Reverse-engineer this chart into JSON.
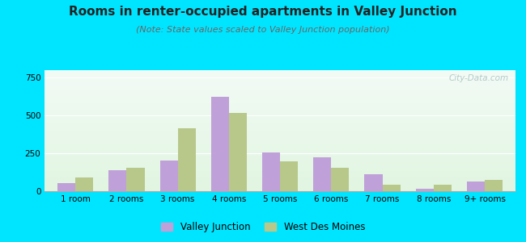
{
  "title": "Rooms in renter-occupied apartments in Valley Junction",
  "subtitle": "(Note: State values scaled to Valley Junction population)",
  "categories": [
    "1 room",
    "2 rooms",
    "3 rooms",
    "4 rooms",
    "5 rooms",
    "6 rooms",
    "7 rooms",
    "8 rooms",
    "9+ rooms"
  ],
  "valley_junction": [
    55,
    140,
    205,
    625,
    255,
    225,
    110,
    15,
    65
  ],
  "west_des_moines": [
    90,
    155,
    415,
    520,
    195,
    155,
    45,
    45,
    75
  ],
  "vj_color": "#c0a0d8",
  "wdm_color": "#b8c88a",
  "ylim": [
    0,
    800
  ],
  "yticks": [
    0,
    250,
    500,
    750
  ],
  "outer_bg": "#00e5ff",
  "title_fontsize": 11,
  "subtitle_fontsize": 8,
  "tick_fontsize": 7.5,
  "legend_labels": [
    "Valley Junction",
    "West Des Moines"
  ],
  "watermark": "City-Data.com"
}
